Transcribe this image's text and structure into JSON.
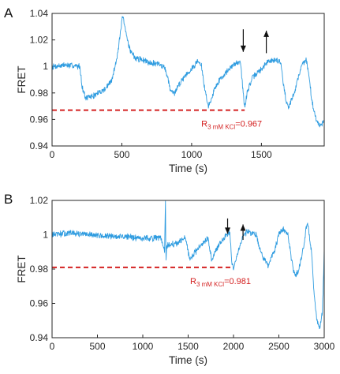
{
  "figure": {
    "colors": {
      "trace": "#2f9ce0",
      "reference": "#d42222",
      "axis": "#262626",
      "arrow": "#111111"
    }
  },
  "chart_data": [
    {
      "type": "line",
      "panel_label": "A",
      "xlabel": "Time (s)",
      "ylabel": "FRET",
      "xlim": [
        0,
        1950
      ],
      "ylim": [
        0.94,
        1.04
      ],
      "x_ticks": [
        0,
        500,
        1000,
        1500
      ],
      "y_ticks": [
        0.94,
        0.96,
        0.98,
        1.0,
        1.02,
        1.04
      ],
      "y_tick_labels": [
        "0.94",
        "0.96",
        "0.98",
        "1",
        "1.02",
        "1.04"
      ],
      "grid": false,
      "series": [
        {
          "values_note_free": true,
          "x": [
            0,
            100,
            200,
            215,
            240,
            300,
            380,
            430,
            470,
            490,
            505,
            530,
            560,
            600,
            650,
            700,
            760,
            800,
            830,
            850,
            880,
            900,
            950,
            1000,
            1040,
            1070,
            1090,
            1120,
            1130,
            1160,
            1200,
            1260,
            1320,
            1350,
            1365,
            1380,
            1400,
            1440,
            1500,
            1550,
            1600,
            1640,
            1660,
            1680,
            1700,
            1740,
            1780,
            1800,
            1820,
            1840,
            1860,
            1880,
            1900,
            1930,
            1950
          ],
          "y": [
            1.0,
            1.001,
            1.0,
            0.985,
            0.976,
            0.978,
            0.983,
            0.99,
            1.01,
            1.025,
            1.038,
            1.025,
            1.012,
            1.006,
            1.005,
            1.003,
            1.002,
            1.0,
            0.992,
            0.98,
            0.98,
            0.985,
            0.993,
            0.998,
            1.004,
            1.001,
            0.985,
            0.97,
            0.972,
            0.982,
            0.99,
            0.997,
            1.003,
            1.004,
            0.985,
            0.968,
            0.982,
            0.992,
            0.998,
            1.004,
            1.005,
            1.003,
            0.985,
            0.972,
            0.97,
            0.982,
            0.998,
            1.003,
            1.005,
            0.995,
            0.975,
            0.965,
            0.958,
            0.955,
            0.961
          ]
        }
      ],
      "reference_line": {
        "y": 0.967,
        "x_end": 1380,
        "label_main": "R",
        "label_sub": "3 mM KCl",
        "label_value": "=0.967"
      },
      "arrows": [
        {
          "x": 1370,
          "direction": "down",
          "y_from": 1.028,
          "y_to": 1.011
        },
        {
          "x": 1535,
          "direction": "up",
          "y_from": 1.01,
          "y_to": 1.027
        }
      ]
    },
    {
      "type": "line",
      "panel_label": "B",
      "xlabel": "Time (s)",
      "ylabel": "FRET",
      "xlim": [
        0,
        3000
      ],
      "ylim": [
        0.94,
        1.02
      ],
      "x_ticks": [
        0,
        500,
        1000,
        1500,
        2000,
        2500,
        3000
      ],
      "y_ticks": [
        0.94,
        0.96,
        0.98,
        1.0,
        1.02
      ],
      "y_tick_labels": [
        "0.94",
        "0.96",
        "0.98",
        "1",
        "1.02"
      ],
      "grid": false,
      "series": [
        {
          "x": [
            0,
            200,
            400,
            600,
            800,
            1000,
            1200,
            1240,
            1250,
            1255,
            1265,
            1300,
            1380,
            1470,
            1520,
            1580,
            1650,
            1720,
            1760,
            1800,
            1850,
            1900,
            1960,
            1980,
            2000,
            2050,
            2100,
            2150,
            2250,
            2300,
            2380,
            2450,
            2500,
            2550,
            2600,
            2640,
            2680,
            2720,
            2780,
            2800,
            2820,
            2860,
            2890,
            2920,
            2950,
            2980,
            3000
          ],
          "y": [
            1.0,
            1.001,
            1.0,
            0.999,
            0.999,
            0.998,
            0.998,
            0.99,
            1.02,
            0.983,
            0.994,
            0.994,
            0.995,
            0.998,
            0.985,
            0.99,
            0.995,
            0.998,
            0.985,
            0.99,
            0.995,
            0.998,
            1.002,
            0.985,
            0.981,
            0.99,
            0.999,
            1.002,
            1.0,
            0.99,
            0.982,
            0.99,
            1.0,
            1.003,
            1.0,
            0.985,
            0.975,
            0.98,
            0.995,
            1.005,
            1.006,
            0.99,
            0.965,
            0.95,
            0.945,
            0.955,
            0.99
          ]
        }
      ],
      "reference_line": {
        "y": 0.981,
        "x_end": 2000,
        "label_main": "R",
        "label_sub": "3 mM KCl",
        "label_value": "=0.981"
      },
      "arrows": [
        {
          "x": 1935,
          "direction": "down",
          "y_from": 1.0095,
          "y_to": 1.0005
        },
        {
          "x": 2105,
          "direction": "up",
          "y_from": 0.997,
          "y_to": 1.006
        }
      ]
    }
  ]
}
